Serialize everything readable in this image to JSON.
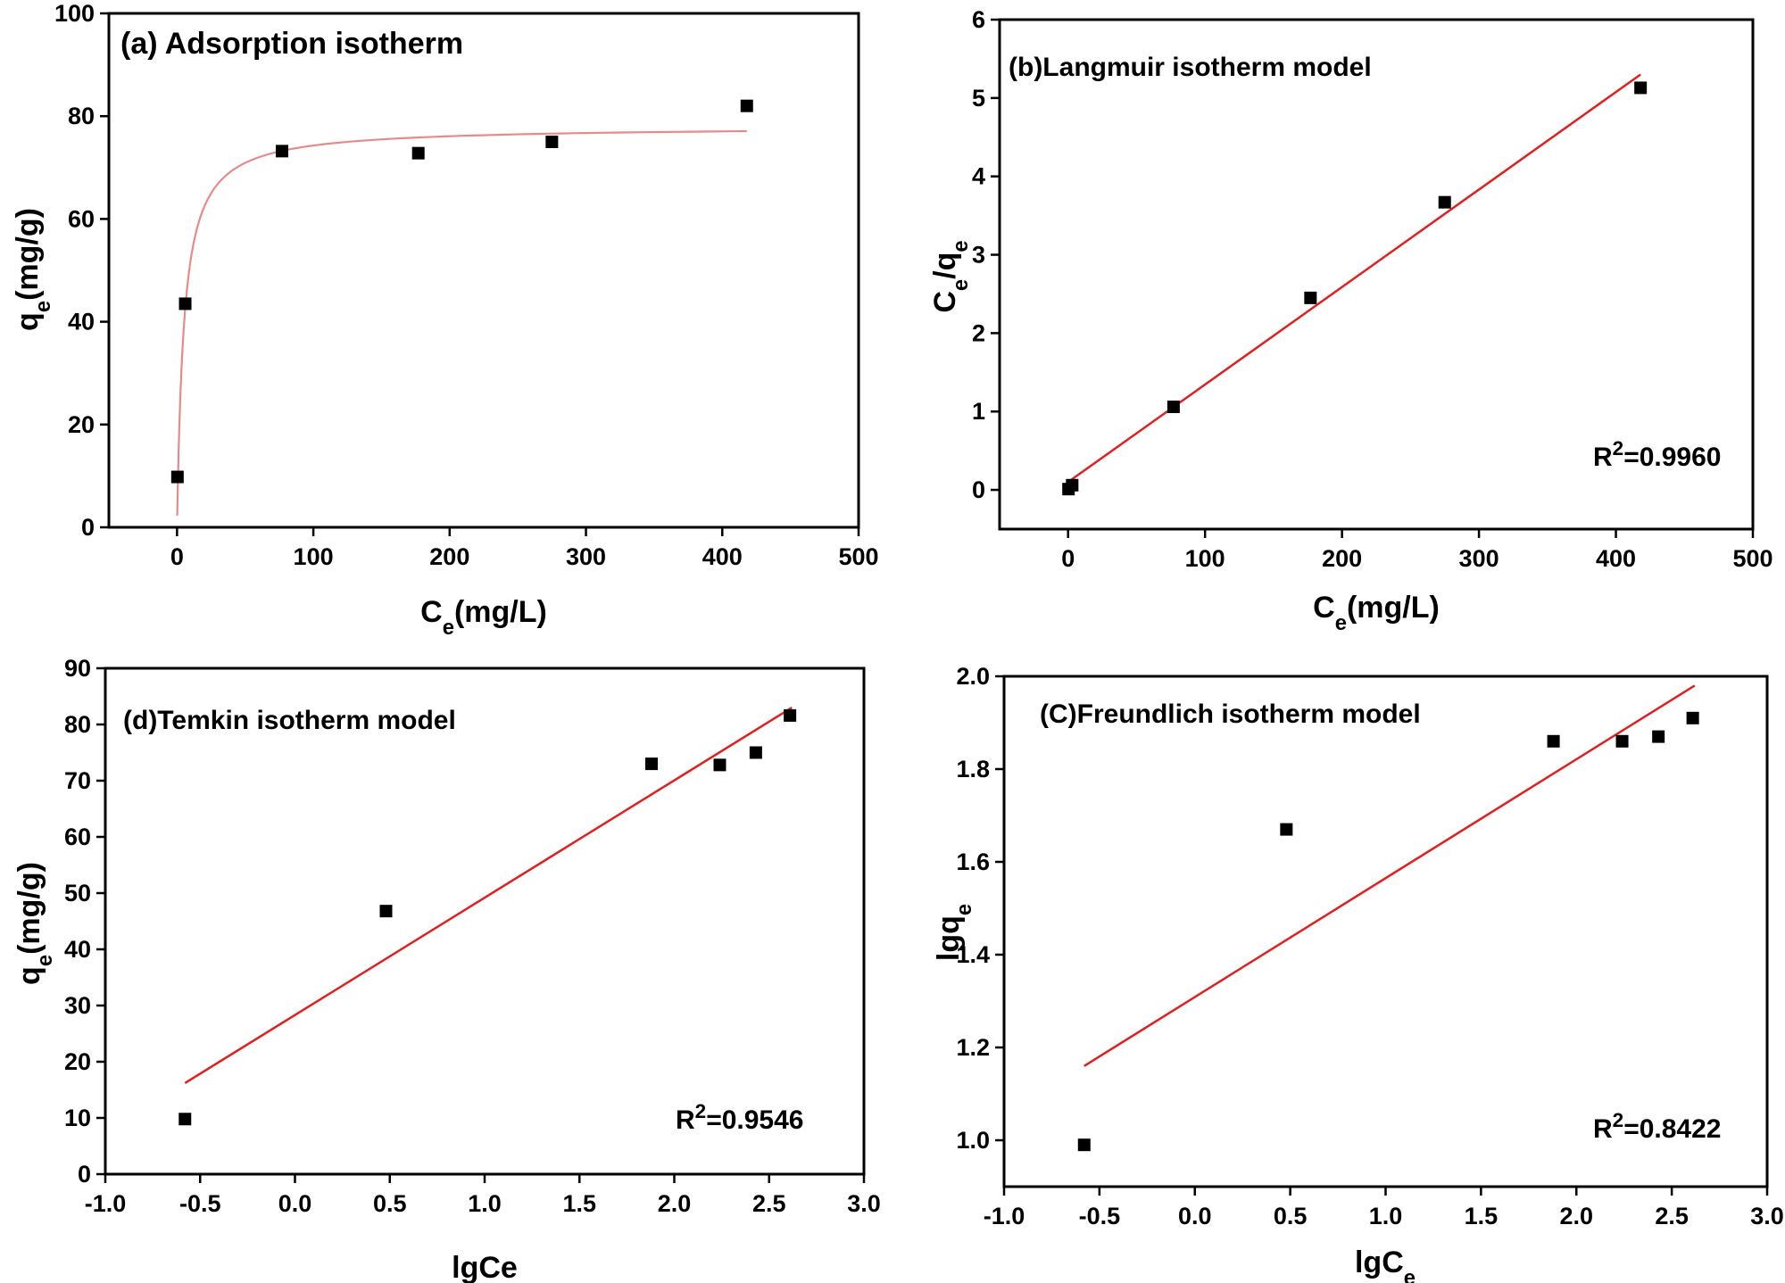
{
  "chart_data": [
    {
      "id": "a",
      "type": "scatter",
      "title": "(a) Adsorption isotherm",
      "xlabel": {
        "base": "C",
        "sub": "e",
        "rest": "(mg/L)"
      },
      "ylabel": {
        "base": "q",
        "sub": "e",
        "rest": "(mg/g)"
      },
      "xlim": [
        -50,
        500
      ],
      "ylim": [
        0,
        100
      ],
      "xticks": [
        "0",
        "100",
        "200",
        "300",
        "400",
        "500"
      ],
      "xtick_values": [
        0,
        100,
        200,
        300,
        400,
        500
      ],
      "yticks": [
        "0",
        "20",
        "40",
        "60",
        "80",
        "100"
      ],
      "ytick_values": [
        0,
        20,
        40,
        60,
        80,
        100
      ],
      "series": [
        {
          "name": "data",
          "x": [
            0.3,
            6,
            77,
            177,
            275,
            418
          ],
          "y": [
            9.8,
            43.5,
            73.2,
            72.8,
            75,
            82
          ]
        }
      ],
      "fit": {
        "kind": "langmuir",
        "qmax": 78,
        "K": 0.2,
        "xmin": 0.15,
        "xmax": 418,
        "color": "#e88a8a"
      },
      "r2": null
    },
    {
      "id": "b",
      "type": "scatter",
      "title": "(b)Langmuir isotherm model",
      "xlabel": {
        "base": "C",
        "sub": "e",
        "rest": "(mg/L)"
      },
      "ylabel": {
        "base": "C",
        "sub": "e",
        "rest": "/q",
        "sub2": "e"
      },
      "xlim": [
        -50,
        500
      ],
      "ylim": [
        -0.5,
        6
      ],
      "xticks": [
        "0",
        "100",
        "200",
        "300",
        "400",
        "500"
      ],
      "xtick_values": [
        0,
        100,
        200,
        300,
        400,
        500
      ],
      "yticks": [
        "0",
        "1",
        "2",
        "3",
        "4",
        "5",
        "6"
      ],
      "ytick_values": [
        0,
        1,
        2,
        3,
        4,
        5,
        6
      ],
      "series": [
        {
          "name": "data",
          "x": [
            0.3,
            3,
            77,
            177,
            275,
            418
          ],
          "y": [
            0.01,
            0.06,
            1.06,
            2.45,
            3.67,
            5.13
          ]
        }
      ],
      "fit": {
        "kind": "linear",
        "x1": 0,
        "y1": 0.1,
        "x2": 418,
        "y2": 5.3,
        "color": "#e02020"
      },
      "r2": {
        "label": "R",
        "sup": "2",
        "value": "=0.9960"
      }
    },
    {
      "id": "d",
      "type": "scatter",
      "title": "(d)Temkin isotherm model",
      "xlabel": {
        "base": "lgCe"
      },
      "ylabel": {
        "base": "q",
        "sub": "e",
        "rest": "(mg/g)"
      },
      "xlim": [
        -1.0,
        3.0
      ],
      "ylim": [
        0,
        90
      ],
      "xticks": [
        "-1.0",
        "-0.5",
        "0.0",
        "0.5",
        "1.0",
        "1.5",
        "2.0",
        "2.5",
        "3.0"
      ],
      "xtick_values": [
        -1.0,
        -0.5,
        0.0,
        0.5,
        1.0,
        1.5,
        2.0,
        2.5,
        3.0
      ],
      "yticks": [
        "0",
        "10",
        "20",
        "30",
        "40",
        "50",
        "60",
        "70",
        "80",
        "90"
      ],
      "ytick_values": [
        0,
        10,
        20,
        30,
        40,
        50,
        60,
        70,
        80,
        90
      ],
      "series": [
        {
          "name": "data",
          "x": [
            -0.58,
            0.48,
            1.88,
            2.24,
            2.43,
            2.61
          ],
          "y": [
            9.8,
            46.8,
            73,
            72.8,
            75,
            81.6
          ]
        }
      ],
      "fit": {
        "kind": "linear",
        "x1": -0.58,
        "y1": 16.2,
        "x2": 2.62,
        "y2": 83,
        "color": "#e02020"
      },
      "r2": {
        "label": "R",
        "sup": "2",
        "value": "=0.9546"
      }
    },
    {
      "id": "c",
      "type": "scatter",
      "title": "(C)Freundlich isotherm model",
      "xlabel": {
        "base": "lgC",
        "sub": "e"
      },
      "ylabel": {
        "base": "lgq",
        "sub": "e"
      },
      "xlim": [
        -1.0,
        3.0
      ],
      "ylim": [
        0.9,
        2.0
      ],
      "xticks": [
        "-1.0",
        "-0.5",
        "0.0",
        "0.5",
        "1.0",
        "1.5",
        "2.0",
        "2.5",
        "3.0"
      ],
      "xtick_values": [
        -1.0,
        -0.5,
        0.0,
        0.5,
        1.0,
        1.5,
        2.0,
        2.5,
        3.0
      ],
      "yticks": [
        "1.0",
        "1.2",
        "1.4",
        "1.6",
        "1.8",
        "2.0"
      ],
      "ytick_values": [
        1.0,
        1.2,
        1.4,
        1.6,
        1.8,
        2.0
      ],
      "series": [
        {
          "name": "data",
          "x": [
            -0.58,
            0.48,
            1.88,
            2.24,
            2.43,
            2.61
          ],
          "y": [
            0.99,
            1.67,
            1.86,
            1.86,
            1.87,
            1.91
          ]
        }
      ],
      "fit": {
        "kind": "linear",
        "x1": -0.58,
        "y1": 1.16,
        "x2": 2.62,
        "y2": 1.98,
        "color": "#e02020"
      },
      "r2": {
        "label": "R",
        "sup": "2",
        "value": "=0.8422"
      }
    }
  ]
}
